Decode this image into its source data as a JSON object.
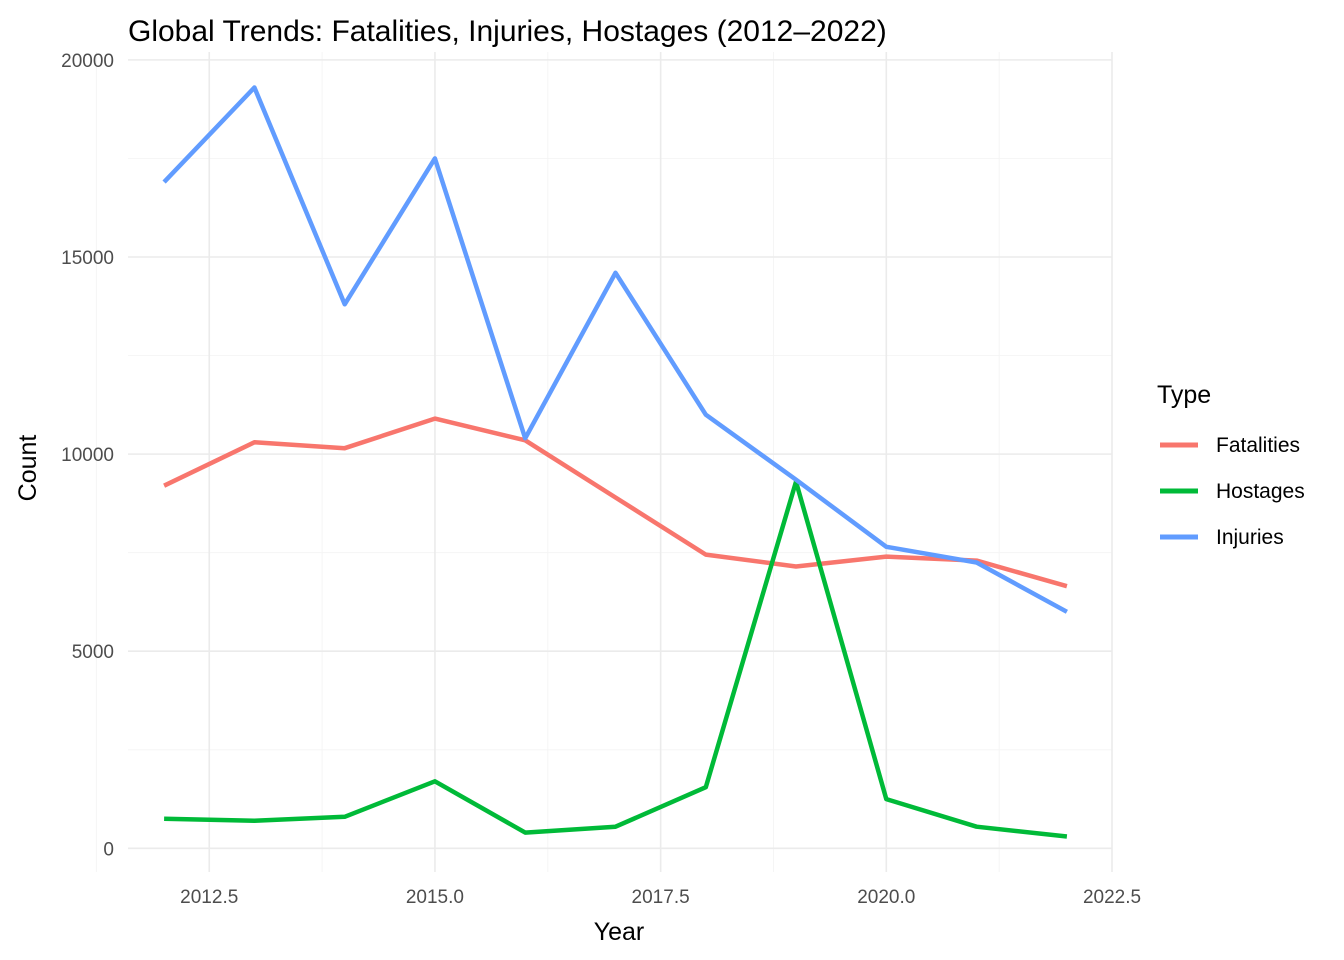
{
  "chart_data": {
    "type": "line",
    "title": "Global Trends: Fatalities, Injuries, Hostages (2012–2022)",
    "xlabel": "Year",
    "ylabel": "Count",
    "xlim": [
      2011.6,
      2022.5
    ],
    "ylim": [
      -600,
      20200
    ],
    "x_ticks": [
      2012.5,
      2015.0,
      2017.5,
      2020.0,
      2022.5
    ],
    "x_tick_labels": [
      "2012.5",
      "2015.0",
      "2017.5",
      "2020.0",
      "2022.5"
    ],
    "y_ticks": [
      0,
      5000,
      10000,
      15000,
      20000
    ],
    "y_tick_labels": [
      "0",
      "5000",
      "10000",
      "15000",
      "20000"
    ],
    "grid": true,
    "legend": {
      "title": "Type",
      "position": "right"
    },
    "x": [
      2012,
      2013,
      2014,
      2015,
      2016,
      2017,
      2018,
      2019,
      2020,
      2021,
      2022
    ],
    "series": [
      {
        "name": "Fatalities",
        "color": "#F8766D",
        "values": [
          9200,
          10300,
          10150,
          10900,
          10350,
          8900,
          7450,
          7150,
          7400,
          7300,
          6650
        ]
      },
      {
        "name": "Hostages",
        "color": "#00BA38",
        "values": [
          750,
          700,
          800,
          1700,
          400,
          550,
          1550,
          9300,
          1250,
          550,
          300
        ]
      },
      {
        "name": "Injuries",
        "color": "#619CFF",
        "values": [
          16900,
          19300,
          13800,
          17500,
          10400,
          14600,
          11000,
          9350,
          7650,
          7250,
          6000
        ]
      }
    ]
  }
}
